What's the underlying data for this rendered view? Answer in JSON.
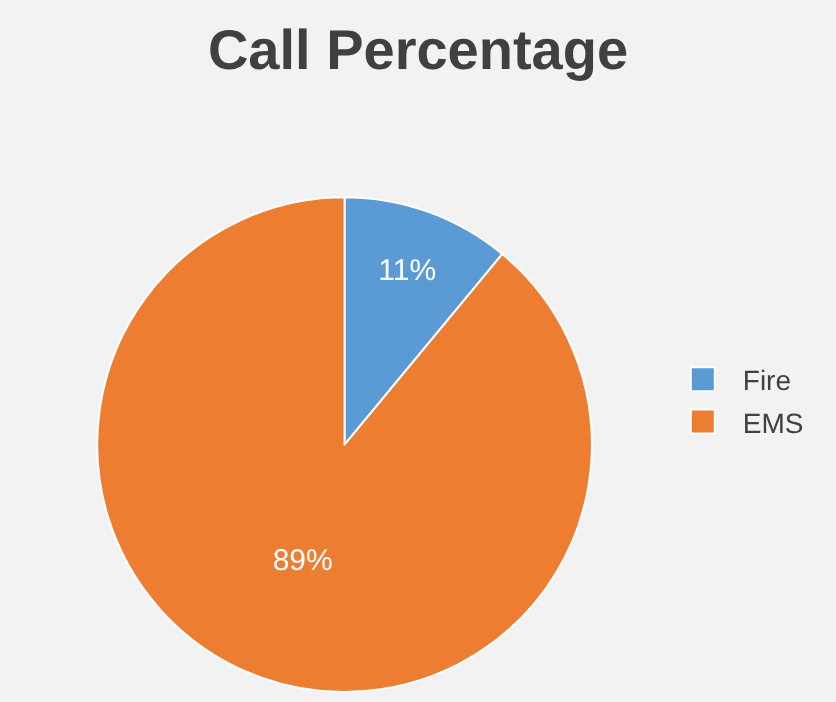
{
  "chart_data": {
    "type": "pie",
    "title": "Call Percentage",
    "categories": [
      "Fire",
      "EMS"
    ],
    "values": [
      11,
      89
    ],
    "colors": [
      "#5b9bd5",
      "#ed7d31"
    ],
    "value_labels": [
      "11%",
      "89%"
    ],
    "legend": "right"
  }
}
